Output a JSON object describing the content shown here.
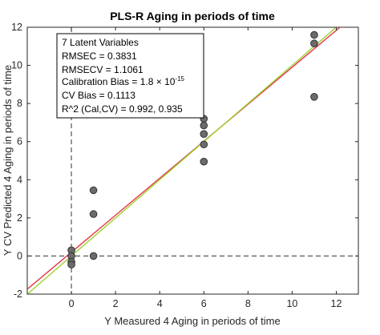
{
  "chart_data": {
    "type": "scatter",
    "title": "PLS-R Aging in periods of time",
    "xlabel": "Y Measured 4 Aging in periods of time",
    "ylabel": "Y CV Predicted 4 Aging in periods of time",
    "xlim": [
      -2,
      13
    ],
    "ylim": [
      -2,
      12
    ],
    "xticks": [
      0,
      2,
      4,
      6,
      8,
      10,
      12
    ],
    "yticks": [
      -2,
      0,
      2,
      4,
      6,
      8,
      10,
      12
    ],
    "grid": false,
    "points": [
      {
        "x": 0,
        "y": 0.3
      },
      {
        "x": 0,
        "y": 0.0
      },
      {
        "x": 0,
        "y": -0.3
      },
      {
        "x": 0,
        "y": -0.45
      },
      {
        "x": 1,
        "y": 3.45
      },
      {
        "x": 1,
        "y": 2.2
      },
      {
        "x": 1,
        "y": 0.0
      },
      {
        "x": 6,
        "y": 7.2
      },
      {
        "x": 6,
        "y": 6.85
      },
      {
        "x": 6,
        "y": 6.4
      },
      {
        "x": 6,
        "y": 5.85
      },
      {
        "x": 6,
        "y": 4.95
      },
      {
        "x": 11,
        "y": 11.6
      },
      {
        "x": 11,
        "y": 11.15
      },
      {
        "x": 11,
        "y": 8.35
      }
    ],
    "lines": [
      {
        "kind": "fit",
        "color": "#e8364f",
        "slope": 0.97,
        "intercept": 0.2
      },
      {
        "kind": "ideal",
        "color": "#9ad42a",
        "slope": 1.0,
        "intercept": 0.0
      }
    ],
    "reference_lines": {
      "x": 0,
      "y": 0,
      "style": "dashed"
    },
    "stats_box": {
      "line1": "7 Latent Variables",
      "line2": "RMSEC = 0.3831",
      "line3": "RMSECV = 1.1061",
      "line4_prefix": "Calibration Bias = 1.8 × 10",
      "line4_exponent": "-15",
      "line5": "CV Bias = 0.1113",
      "line6": "R^2 (Cal,CV) = 0.992, 0.935"
    },
    "colors": {
      "point_fill": "#6b6b6b",
      "point_stroke": "#333333",
      "axis": "#262626"
    }
  }
}
